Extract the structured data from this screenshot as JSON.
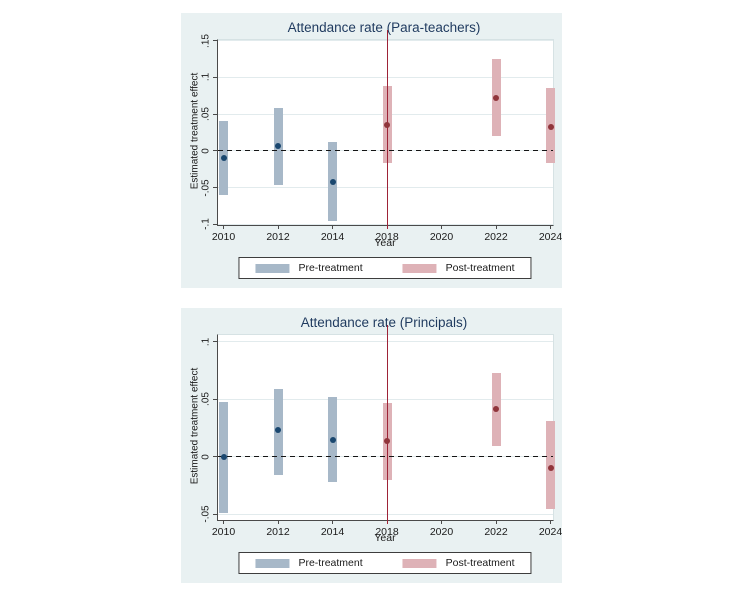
{
  "legend": {
    "pre_label": "Pre-treatment",
    "post_label": "Post-treatment"
  },
  "colors": {
    "panel_bg": "#e9f1f2",
    "plot_bg": "#ffffff",
    "grid": "#e2ebed",
    "title": "#1f3a5f",
    "pre_bar": "#a7b8c8",
    "pre_marker": "#1a476f",
    "post_bar": "#deb2b7",
    "post_marker": "#90353b",
    "vline": "#9e2337",
    "zero_line": "#151515"
  },
  "chart_data": [
    {
      "type": "scatter",
      "title": "Attendance rate (Para-teachers)",
      "xlabel": "Year",
      "ylabel": "Estimated treatment effect",
      "x_ticks": [
        "2010",
        "2012",
        "2014",
        "2018",
        "2020",
        "2022",
        "2024"
      ],
      "y_ticks": [
        -0.1,
        -0.05,
        0,
        0.05,
        0.1,
        0.15
      ],
      "y_tick_labels": [
        "-.1",
        "-.05",
        "0",
        ".05",
        ".1",
        ".15"
      ],
      "ylim": [
        -0.101,
        0.151
      ],
      "grid": true,
      "zero_line_dashed": true,
      "vline_at": "2018",
      "legend_position": "bottom",
      "series": [
        {
          "name": "Pre-treatment",
          "key": "pre",
          "points": [
            {
              "x": "2010",
              "est": -0.01,
              "ci_low": -0.06,
              "ci_high": 0.04
            },
            {
              "x": "2012",
              "est": 0.007,
              "ci_low": -0.046,
              "ci_high": 0.059
            },
            {
              "x": "2014",
              "est": -0.042,
              "ci_low": -0.096,
              "ci_high": 0.012
            }
          ]
        },
        {
          "name": "Post-treatment",
          "key": "post",
          "points": [
            {
              "x": "2018",
              "est": 0.035,
              "ci_low": -0.016,
              "ci_high": 0.088
            },
            {
              "x": "2022",
              "est": 0.072,
              "ci_low": 0.02,
              "ci_high": 0.125
            },
            {
              "x": "2024",
              "est": 0.032,
              "ci_low": -0.016,
              "ci_high": 0.085
            }
          ]
        }
      ]
    },
    {
      "type": "scatter",
      "title": "Attendance rate (Principals)",
      "xlabel": "Year",
      "ylabel": "Estimated treatment effect",
      "x_ticks": [
        "2010",
        "2012",
        "2014",
        "2018",
        "2020",
        "2022",
        "2024"
      ],
      "y_ticks": [
        -0.05,
        0,
        0.05,
        0.1
      ],
      "y_tick_labels": [
        "-.05",
        "0",
        ".05",
        ".1"
      ],
      "ylim": [
        -0.055,
        0.106
      ],
      "grid": true,
      "zero_line_dashed": true,
      "vline_at": "2018",
      "legend_position": "bottom",
      "series": [
        {
          "name": "Pre-treatment",
          "key": "pre",
          "points": [
            {
              "x": "2010",
              "est": 0.0,
              "ci_low": -0.049,
              "ci_high": 0.048
            },
            {
              "x": "2012",
              "est": 0.023,
              "ci_low": -0.016,
              "ci_high": 0.059
            },
            {
              "x": "2014",
              "est": 0.015,
              "ci_low": -0.022,
              "ci_high": 0.052
            }
          ]
        },
        {
          "name": "Post-treatment",
          "key": "post",
          "points": [
            {
              "x": "2018",
              "est": 0.014,
              "ci_low": -0.02,
              "ci_high": 0.047
            },
            {
              "x": "2022",
              "est": 0.042,
              "ci_low": 0.009,
              "ci_high": 0.073
            },
            {
              "x": "2024",
              "est": -0.01,
              "ci_low": -0.045,
              "ci_high": 0.031
            }
          ]
        }
      ]
    }
  ]
}
